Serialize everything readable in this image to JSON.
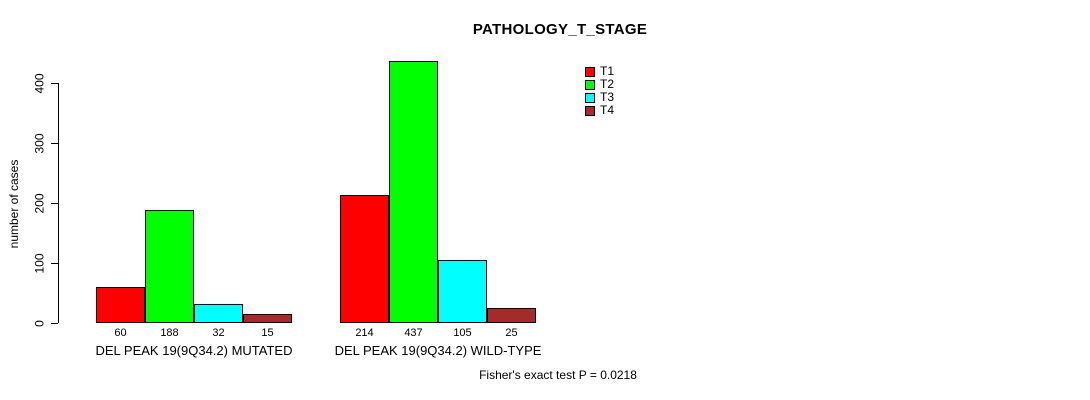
{
  "title": "PATHOLOGY_T_STAGE",
  "footer": {
    "note": "Fisher's exact test P = 0.0218"
  },
  "legend": {
    "items": [
      {
        "label": "T1",
        "color": "#FF0000"
      },
      {
        "label": "T2",
        "color": "#00FF00"
      },
      {
        "label": "T3",
        "color": "#00FFFF"
      },
      {
        "label": "T4",
        "color": "#A52A2A"
      }
    ]
  },
  "chart_data": {
    "type": "bar",
    "title": "PATHOLOGY_T_STAGE",
    "xlabel": "",
    "ylabel": "number of cases",
    "ylim": [
      0,
      437
    ],
    "yticks": [
      0,
      100,
      200,
      300,
      400
    ],
    "grid": false,
    "legend_position": "top-right",
    "categories": [
      "DEL PEAK 19(9Q34.2) MUTATED",
      "DEL PEAK 19(9Q34.2) WILD-TYPE"
    ],
    "series": [
      {
        "name": "T1",
        "color": "#FF0000",
        "values": [
          60,
          214
        ]
      },
      {
        "name": "T2",
        "color": "#00FF00",
        "values": [
          188,
          437
        ]
      },
      {
        "name": "T3",
        "color": "#00FFFF",
        "values": [
          32,
          105
        ]
      },
      {
        "name": "T4",
        "color": "#A52A2A",
        "values": [
          15,
          25
        ]
      }
    ],
    "bar_value_labels": [
      [
        60,
        188,
        32,
        15
      ],
      [
        214,
        437,
        105,
        25
      ]
    ],
    "annotation": "Fisher's exact test P = 0.0218"
  }
}
